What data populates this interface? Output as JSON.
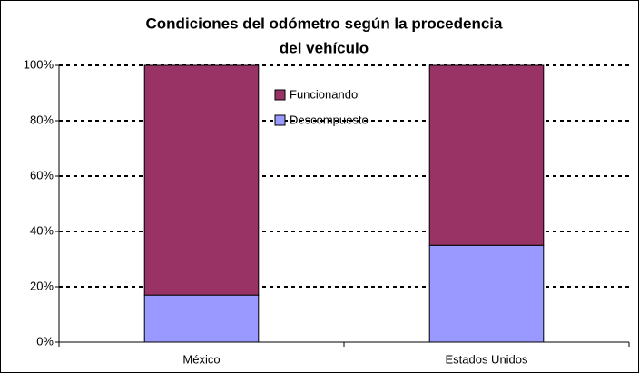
{
  "chart_data": {
    "type": "stacked_bar",
    "title": "Condiciones del odómetro según la procedencia",
    "subtitle": "del vehículo",
    "categories": [
      "México",
      "Estados Unidos"
    ],
    "series": [
      {
        "name": "Descompuesto",
        "color": "#9999ff",
        "values": [
          17,
          35
        ]
      },
      {
        "name": "Funcionando",
        "color": "#993366",
        "values": [
          83,
          65
        ]
      }
    ],
    "ylim": [
      0,
      100
    ],
    "yticks": [
      {
        "value": 0,
        "label": "0%"
      },
      {
        "value": 20,
        "label": "20%"
      },
      {
        "value": 40,
        "label": "40%"
      },
      {
        "value": 60,
        "label": "60%"
      },
      {
        "value": 80,
        "label": "80%"
      },
      {
        "value": 100,
        "label": "100%"
      }
    ],
    "grid": true,
    "legend": "top"
  }
}
